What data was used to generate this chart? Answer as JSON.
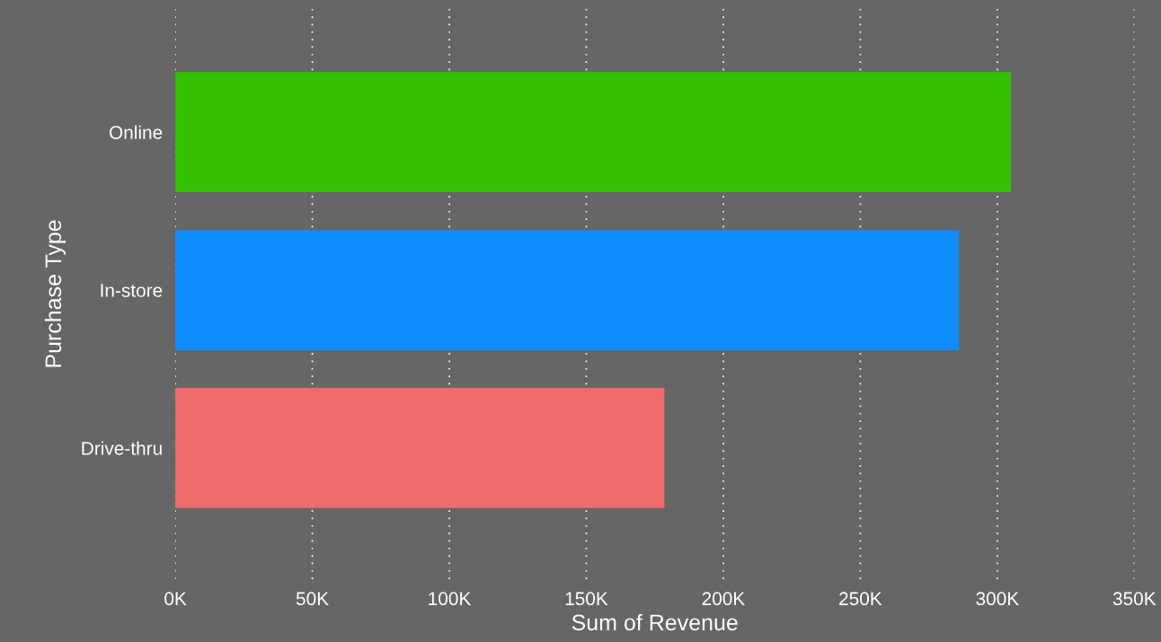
{
  "chart_data": {
    "type": "bar",
    "orientation": "horizontal",
    "xlabel": "Sum of Revenue",
    "ylabel": "Purchase Type",
    "categories": [
      "Online",
      "In-store",
      "Drive-thru"
    ],
    "values": [
      305000,
      286000,
      178500
    ],
    "colors": [
      "#34c104",
      "#118dff",
      "#f06b6b"
    ],
    "xlim": [
      0,
      350000
    ],
    "xticks": [
      {
        "value": 0,
        "label": "0K"
      },
      {
        "value": 50000,
        "label": "50K"
      },
      {
        "value": 100000,
        "label": "100K"
      },
      {
        "value": 150000,
        "label": "150K"
      },
      {
        "value": 200000,
        "label": "200K"
      },
      {
        "value": 250000,
        "label": "250K"
      },
      {
        "value": 300000,
        "label": "300K"
      },
      {
        "value": 350000,
        "label": "350K"
      }
    ],
    "grid": "x"
  }
}
